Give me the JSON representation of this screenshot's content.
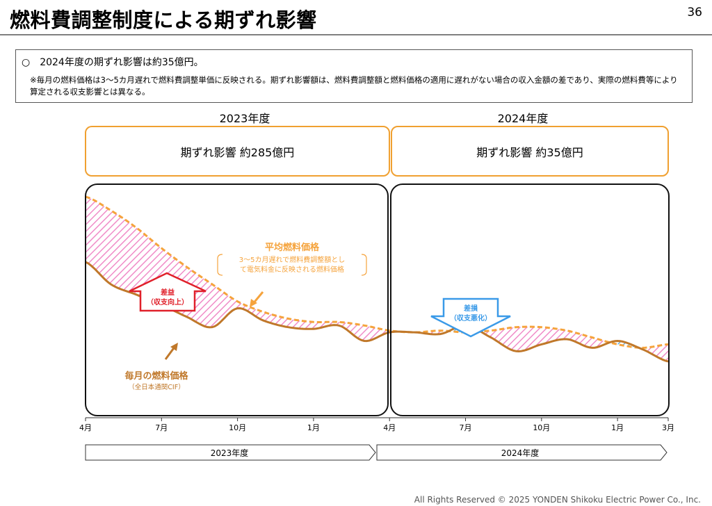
{
  "header": {
    "title": "燃料費調整制度による期ずれ影響",
    "page_number": "36"
  },
  "note": {
    "main": "○　2024年度の期ずれ影響は約35億円。",
    "sub": "※毎月の燃料価格は3～5カ月遅れで燃料費調整単価に反映される。期ずれ影響額は、燃料費調整額と燃料価格の適用に遅れがない場合の収入金額の差であり、実際の燃料費等により算定される収支影響とは異なる。"
  },
  "fiscal_years": [
    {
      "label": "2023年度",
      "impact": "期ずれ影響 約285億円"
    },
    {
      "label": "2024年度",
      "impact": "期ずれ影響 約35億円"
    }
  ],
  "annotations": {
    "avg_price_title": "平均燃料価格",
    "avg_price_desc_1": "3～5カ月遅れで燃料費調整額とし",
    "avg_price_desc_2": "て電気料金に反映される燃料価格",
    "monthly_price_title": "毎月の燃料価格",
    "monthly_price_desc": "（全日本通関CIF）",
    "gain_label_1": "差益",
    "gain_label_2": "（収支向上）",
    "loss_label_1": "差損",
    "loss_label_2": "（収支悪化）"
  },
  "timeline": {
    "fy2023": "2023年度",
    "fy2024": "2024年度"
  },
  "footer": "All Rights Reserved © 2025 YONDEN Shikoku Electric Power Co., Inc.",
  "colors": {
    "avg_line": "#f5a33c",
    "monthly_line": "#c0782a",
    "gain_hatch": "#f08cc8",
    "loss_hatch": "#4aa3e0",
    "gain_arrow": "#e0202a",
    "loss_arrow": "#3a9ae8",
    "box_border": "#f0a030"
  },
  "chart_data": {
    "type": "line",
    "x": [
      "4月",
      "5月",
      "6月",
      "7月",
      "8月",
      "9月",
      "10月",
      "11月",
      "12月",
      "1月",
      "2月",
      "3月",
      "4月",
      "5月",
      "6月",
      "7月",
      "8月",
      "9月",
      "10月",
      "11月",
      "12月",
      "1月",
      "2月",
      "3月"
    ],
    "tick_labels": [
      "4月",
      "7月",
      "10月",
      "1月",
      "4月",
      "7月",
      "10月",
      "1月",
      "3月"
    ],
    "y_unit": "relative (no axis values shown)",
    "ylim": [
      0,
      100
    ],
    "series": [
      {
        "name": "平均燃料価格",
        "style": "dashed",
        "values": [
          100,
          92,
          82,
          70,
          59,
          49,
          39,
          33,
          29,
          27,
          27,
          25,
          22,
          21,
          22,
          21,
          22,
          24,
          24,
          22,
          18,
          14,
          12,
          14
        ]
      },
      {
        "name": "毎月の燃料価格",
        "style": "solid",
        "values": [
          62,
          49,
          43,
          37,
          30,
          24,
          35,
          28,
          24,
          23,
          25,
          16,
          21,
          21,
          20,
          25,
          18,
          10,
          14,
          17,
          12,
          16,
          11,
          4
        ]
      }
    ]
  }
}
